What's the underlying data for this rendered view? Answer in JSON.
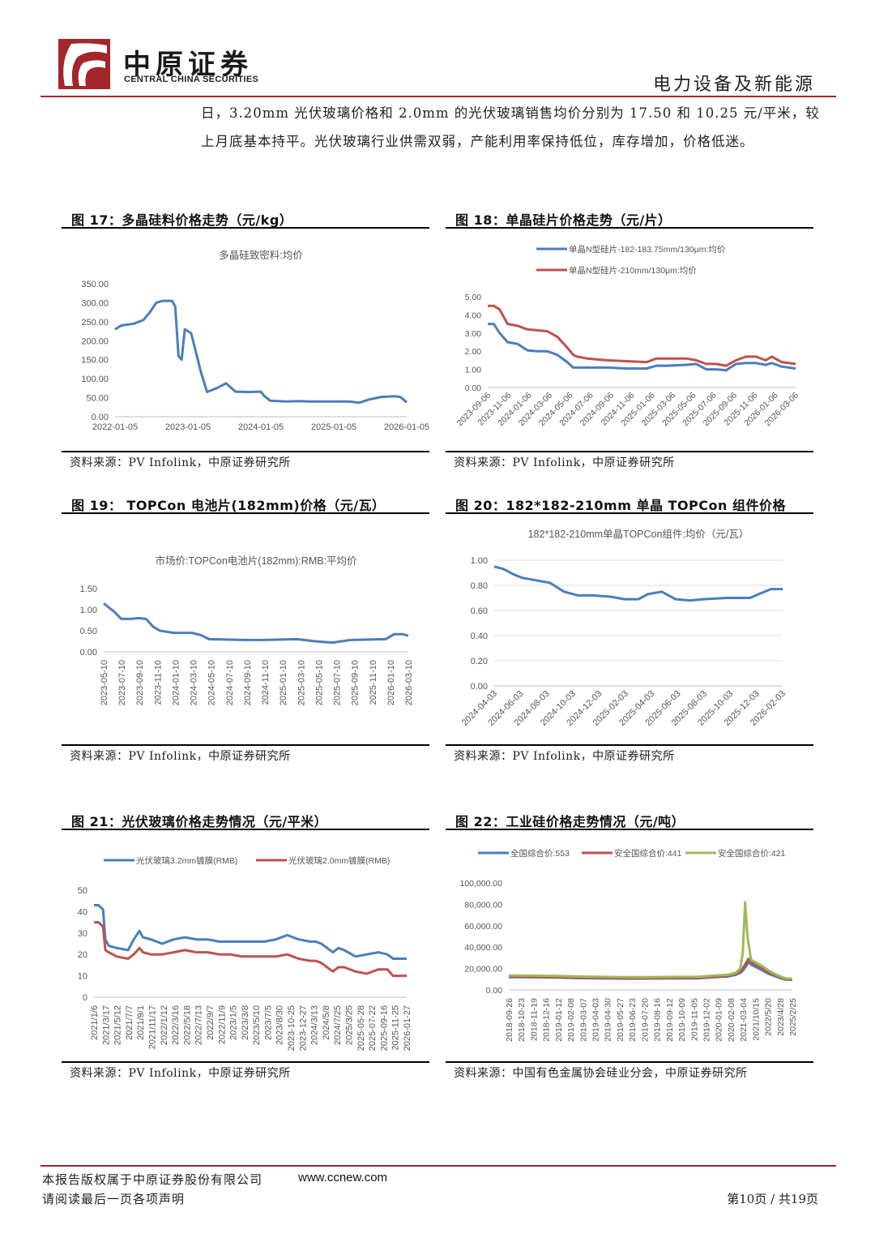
{
  "header": {
    "logo_cn": "中原证券",
    "logo_en": "CENTRAL CHINA SECURITIES",
    "section_title": "电力设备及新能源",
    "brand_color": "#a2262b"
  },
  "body_text": {
    "line1": "日，3.20mm 光伏玻璃价格和 2.0mm 的光伏玻璃销售均价分别为 17.50 和 10.25 元/平米，较",
    "line2": "上月底基本持平。光伏玻璃行业供需双弱，产能利用率保持低位，库存增加，价格低迷。"
  },
  "figures": [
    {
      "title": "图 17：多晶硅料价格走势（元/kg）",
      "source": "资料来源：PV Infolink，中原证券研究所"
    },
    {
      "title": "图 18：单晶硅片价格走势（元/片）",
      "source": "资料来源：PV Infolink，中原证券研究所"
    },
    {
      "title": "图 19： TOPCon 电池片(182mm)价格（元/瓦）",
      "source": "资料来源：PV Infolink，中原证券研究所"
    },
    {
      "title": "图 20：182*182-210mm 单晶 TOPCon 组件价格",
      "source": "资料来源：PV Infolink，中原证券研究所"
    },
    {
      "title": "图 21：光伏玻璃价格走势情况（元/平米）",
      "source": "资料来源：PV Infolink，中原证券研究所"
    },
    {
      "title": "图 22：工业硅价格走势情况（元/吨）",
      "source": "资料来源：中国有色金属协会硅业分会，中原证券研究所"
    }
  ],
  "chart_data": [
    {
      "type": "line",
      "title": "多晶硅致密料:均价",
      "ylim": [
        0,
        350
      ],
      "yticks": [
        "0.00",
        "50.00",
        "100.00",
        "150.00",
        "200.00",
        "250.00",
        "300.00",
        "350.00"
      ],
      "xticks": [
        "2022-01-05",
        "2023-01-05",
        "2024-01-05",
        "2025-01-05",
        "2026-01-05"
      ],
      "xrange": [
        0,
        4.6
      ],
      "series": [
        {
          "name": "多晶硅致密料:均价",
          "color": "#4a7ebb",
          "x": [
            0.0,
            0.1,
            0.3,
            0.45,
            0.55,
            0.65,
            0.75,
            0.9,
            0.95,
            1.0,
            1.05,
            1.1,
            1.2,
            1.35,
            1.45,
            1.6,
            1.75,
            1.9,
            2.1,
            2.3,
            2.35,
            2.45,
            2.7,
            2.9,
            3.1,
            3.3,
            3.5,
            3.7,
            3.85,
            4.0,
            4.2,
            4.4,
            4.5,
            4.6
          ],
          "values": [
            230,
            240,
            245,
            255,
            275,
            300,
            305,
            305,
            290,
            160,
            150,
            230,
            220,
            120,
            65,
            75,
            88,
            66,
            65,
            66,
            55,
            42,
            40,
            41,
            40,
            40,
            40,
            40,
            37,
            45,
            52,
            54,
            52,
            38
          ]
        }
      ]
    },
    {
      "type": "line",
      "title": "",
      "ylim": [
        0,
        5
      ],
      "yticks": [
        "0.00",
        "1.00",
        "2.00",
        "3.00",
        "4.00",
        "5.00"
      ],
      "xticks": [
        "2023-09-06",
        "2023-11-06",
        "2024-01-06",
        "2024-03-06",
        "2024-05-06",
        "2024-07-06",
        "2024-09-06",
        "2024-11-06",
        "2025-01-06",
        "2025-03-06",
        "2025-05-06",
        "2025-07-06",
        "2025-09-06",
        "2025-11-06",
        "2026-01-06",
        "2026-03-06"
      ],
      "xrange": [
        0,
        15.5
      ],
      "series": [
        {
          "name": "单晶N型硅片-182-183.75mm/130μm:均价",
          "color": "#4a7ebb",
          "x": [
            0,
            0.3,
            0.6,
            1.0,
            1.5,
            2.0,
            2.5,
            3.0,
            3.5,
            4.0,
            4.3,
            4.5,
            5,
            6,
            7,
            8,
            8.5,
            9,
            10,
            10.5,
            11,
            11.5,
            12,
            12.5,
            13,
            13.5,
            14,
            14.3,
            14.8,
            15.5
          ],
          "values": [
            3.5,
            3.5,
            3.0,
            2.5,
            2.4,
            2.05,
            2.0,
            2.0,
            1.8,
            1.4,
            1.1,
            1.1,
            1.1,
            1.1,
            1.05,
            1.05,
            1.2,
            1.2,
            1.25,
            1.3,
            1.0,
            1.0,
            0.95,
            1.3,
            1.35,
            1.35,
            1.25,
            1.35,
            1.15,
            1.05
          ]
        },
        {
          "name": "单晶N型硅片-210mm/130μm:均价",
          "color": "#c0504d",
          "x": [
            0,
            0.3,
            0.6,
            1.0,
            1.5,
            2.0,
            2.5,
            3.0,
            3.5,
            4.0,
            4.3,
            4.5,
            5,
            6,
            7,
            8,
            8.5,
            9,
            10,
            10.5,
            11,
            11.5,
            12,
            12.5,
            13,
            13.5,
            14,
            14.3,
            14.8,
            15.5
          ],
          "values": [
            4.5,
            4.5,
            4.3,
            3.5,
            3.4,
            3.2,
            3.15,
            3.1,
            2.8,
            2.2,
            1.8,
            1.7,
            1.6,
            1.5,
            1.45,
            1.4,
            1.6,
            1.6,
            1.6,
            1.5,
            1.3,
            1.3,
            1.2,
            1.5,
            1.7,
            1.7,
            1.5,
            1.7,
            1.4,
            1.3
          ]
        }
      ]
    },
    {
      "type": "line",
      "title": "市场价:TOPCon电池片(182mm):RMB:平均价",
      "ylim": [
        0,
        1.5
      ],
      "yticks": [
        "0.00",
        "0.50",
        "1.00",
        "1.50"
      ],
      "xticks": [
        "2023-05-10",
        "2023-07-10",
        "2023-09-10",
        "2023-11-10",
        "2024-01-10",
        "2024-03-10",
        "2024-05-10",
        "2024-07-10",
        "2024-09-10",
        "2024-11-10",
        "2025-01-10",
        "2025-03-10",
        "2025-05-10",
        "2025-07-10",
        "2025-09-10",
        "2025-11-10",
        "2026-01-10",
        "2026-03-10"
      ],
      "xrange": [
        0,
        17.3
      ],
      "series": [
        {
          "name": "市场价:TOPCon电池片(182mm):RMB:平均价",
          "color": "#4a7ebb",
          "x": [
            0,
            0.3,
            0.6,
            1.0,
            1.5,
            2.0,
            2.4,
            2.8,
            3.2,
            4,
            5,
            5.5,
            6,
            7,
            8,
            9,
            10,
            11,
            12,
            13,
            14,
            15,
            16,
            16.5,
            17,
            17.3
          ],
          "values": [
            1.15,
            1.05,
            0.95,
            0.78,
            0.78,
            0.8,
            0.78,
            0.6,
            0.5,
            0.45,
            0.45,
            0.4,
            0.3,
            0.29,
            0.28,
            0.28,
            0.29,
            0.3,
            0.25,
            0.22,
            0.28,
            0.29,
            0.3,
            0.42,
            0.42,
            0.38
          ]
        }
      ]
    },
    {
      "type": "line",
      "title": "182*182-210mm单晶TOPCon组件:均价（元/瓦）",
      "ylim": [
        0,
        1
      ],
      "yticks": [
        "0.00",
        "0.20",
        "0.40",
        "0.60",
        "0.80",
        "1.00"
      ],
      "xticks": [
        "2024-04-03",
        "2024-06-03",
        "2024-08-03",
        "2024-10-03",
        "2024-12-03",
        "2025-02-03",
        "2025-04-03",
        "2025-06-03",
        "2025-08-03",
        "2025-10-03",
        "2025-12-03",
        "2026-02-03"
      ],
      "xrange": [
        0,
        12.4
      ],
      "series": [
        {
          "name": "182*182-210mm单晶TOPCon组件:均价",
          "color": "#4a7ebb",
          "x": [
            0,
            0.4,
            0.8,
            1.2,
            1.8,
            2.4,
            3.0,
            3.6,
            4.2,
            5.0,
            5.6,
            6.2,
            6.6,
            7.2,
            7.8,
            8.4,
            9.0,
            10.0,
            11.0,
            11.5,
            11.9,
            12.4
          ],
          "values": [
            0.95,
            0.93,
            0.89,
            0.86,
            0.84,
            0.82,
            0.75,
            0.72,
            0.72,
            0.71,
            0.69,
            0.69,
            0.73,
            0.75,
            0.69,
            0.68,
            0.69,
            0.7,
            0.7,
            0.74,
            0.77,
            0.77
          ]
        }
      ]
    },
    {
      "type": "line",
      "title": "",
      "ylim": [
        0,
        50
      ],
      "yticks": [
        "0",
        "10",
        "20",
        "30",
        "40",
        "50"
      ],
      "xticks": [
        "2021/1/6",
        "2021/3/17",
        "2021/5/12",
        "2021/7/7",
        "2021/9/1",
        "2021/11/17",
        "2022/1/12",
        "2022/3/16",
        "2022/5/18",
        "2022/7/13",
        "2022/9/7",
        "2022/11/9",
        "2023/1/5",
        "2023/3/8",
        "2023/5/10",
        "2023/7/5",
        "2023/8/30",
        "2023-10-25",
        "2023-12-27",
        "2024/3/13",
        "2024/5/8",
        "2024/7/25",
        "2025/3/25",
        "2025-05-28",
        "2025-07-22",
        "2025-09-16",
        "2025-11-25",
        "2026-01-27"
      ],
      "xrange": [
        0,
        27.5
      ],
      "series": [
        {
          "name": "光伏玻璃3.2mm镀膜(RMB)",
          "color": "#4a7ebb",
          "x": [
            0,
            0.4,
            0.8,
            1.0,
            1.3,
            2,
            3,
            3.5,
            4,
            4.3,
            5,
            6,
            7,
            8,
            9,
            10,
            11,
            12,
            13,
            14,
            15,
            16,
            17,
            17.5,
            18,
            19,
            19.5,
            20,
            21,
            21.5,
            22,
            23,
            24,
            25,
            25.8,
            26.3,
            27.5
          ],
          "values": [
            43,
            43,
            41,
            27,
            24,
            23,
            22,
            27,
            31,
            28,
            27,
            25,
            27,
            28,
            27,
            27,
            26,
            26,
            26,
            26,
            26,
            27,
            29,
            28,
            27,
            26,
            26,
            25,
            21,
            23,
            22,
            19,
            20,
            21,
            20,
            18,
            18
          ]
        },
        {
          "name": "光伏玻璃2.0mm镀膜(RMB)",
          "color": "#c0504d",
          "x": [
            0,
            0.4,
            0.8,
            1.0,
            1.3,
            2,
            3,
            3.5,
            4,
            4.3,
            5,
            6,
            7,
            8,
            9,
            10,
            11,
            12,
            13,
            14,
            15,
            16,
            17,
            17.5,
            18,
            19,
            19.5,
            20,
            21,
            21.5,
            22,
            23,
            24,
            25,
            25.8,
            26.3,
            27.5
          ],
          "values": [
            35,
            35,
            33,
            22,
            21,
            19,
            18,
            20,
            23,
            21,
            20,
            20,
            21,
            22,
            21,
            21,
            20,
            20,
            19,
            19,
            19,
            19,
            20,
            19,
            18,
            17,
            17,
            16,
            12,
            14,
            14,
            12,
            11,
            13,
            13,
            10,
            10
          ]
        }
      ]
    },
    {
      "type": "line",
      "title": "",
      "ylim": [
        0,
        100000
      ],
      "yticks": [
        "0.00",
        "20,000.00",
        "40,000.00",
        "60,000.00",
        "80,000.00",
        "100,000.00"
      ],
      "xticks": [
        "2018-09-26",
        "2018-10-23",
        "2018-11-19",
        "2018-12-16",
        "2019-01-12",
        "2019-02-08",
        "2019-03-07",
        "2019-04-03",
        "2019-04-30",
        "2019-05-27",
        "2019-06-23",
        "2019-07-20",
        "2019-08-16",
        "2019-09-12",
        "2019-10-09",
        "2019-11-05",
        "2019-12-02",
        "2020-01-09",
        "2020-02-08",
        "2021-03-04",
        "2021/10/15",
        "2022/5/20",
        "2023/4/28",
        "2025/2/25"
      ],
      "xrange": [
        0,
        24
      ],
      "series": [
        {
          "name": "全国综合价:553",
          "color": "#4a7ebb",
          "x": [
            0,
            2,
            4,
            6,
            8,
            10,
            12,
            14,
            16,
            17.5,
            18.5,
            19.2,
            19.6,
            19.8,
            20.0,
            20.3,
            20.6,
            21,
            21.5,
            22,
            22.5,
            23,
            23.5,
            24
          ],
          "values": [
            12000,
            11800,
            11500,
            11000,
            10800,
            10500,
            10600,
            10800,
            10800,
            12000,
            12500,
            14000,
            16000,
            18000,
            21000,
            26000,
            23000,
            21000,
            18000,
            15000,
            13000,
            11000,
            9500,
            9500
          ]
        },
        {
          "name": "安全国综合价:441",
          "color": "#c0504d",
          "x": [
            0,
            2,
            4,
            6,
            8,
            10,
            12,
            14,
            16,
            17.5,
            18.5,
            19.2,
            19.6,
            19.8,
            20.0,
            20.3,
            20.6,
            21,
            21.5,
            22,
            22.5,
            23,
            23.5,
            24
          ],
          "values": [
            12500,
            12300,
            12000,
            11500,
            11200,
            11000,
            11000,
            11200,
            11200,
            12500,
            13000,
            15000,
            17000,
            20000,
            24000,
            29000,
            25000,
            23000,
            20000,
            16000,
            14000,
            12000,
            10000,
            10000
          ]
        },
        {
          "name": "安全国综合价:421",
          "color": "#9bbb59",
          "x": [
            0,
            2,
            4,
            6,
            8,
            10,
            12,
            14,
            16,
            17.5,
            18.5,
            19.2,
            19.6,
            19.8,
            20.0,
            20.2,
            20.5,
            21,
            21.5,
            22,
            22.5,
            23,
            23.5,
            24
          ],
          "values": [
            13500,
            13300,
            13000,
            12500,
            12200,
            12000,
            12000,
            12200,
            12200,
            13500,
            14000,
            16000,
            20000,
            35000,
            82000,
            50000,
            28000,
            25000,
            22000,
            18000,
            15000,
            12500,
            10500,
            10500
          ]
        }
      ]
    }
  ],
  "footer": {
    "copyright": "本报告版权属于中原证券股份有限公司",
    "url": "www.ccnew.com",
    "notice": "请阅读最后一页各项声明",
    "page_label": "第10页 / 共19页"
  }
}
